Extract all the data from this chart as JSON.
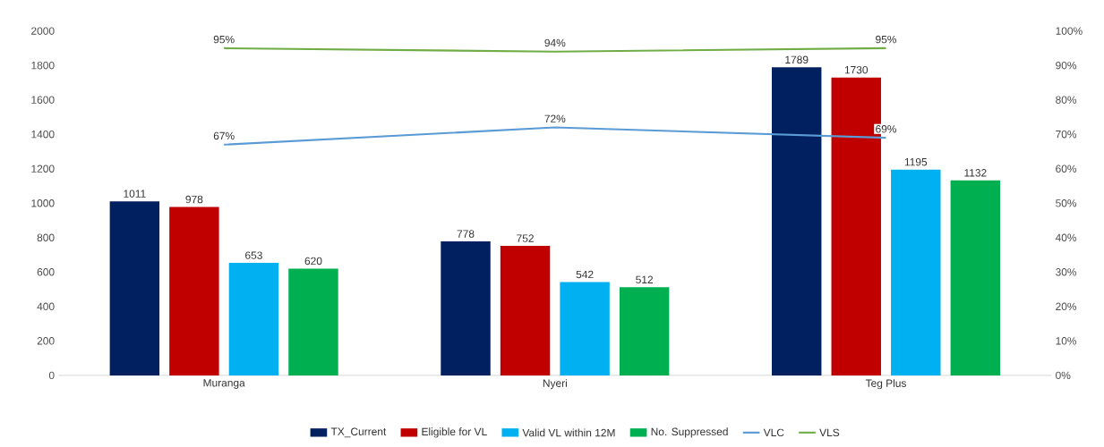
{
  "chart_data": {
    "type": "bar",
    "categories": [
      "Muranga",
      "Nyeri",
      "Teg Plus"
    ],
    "series": [
      {
        "name": "TX_Current",
        "color": "#002060",
        "values": [
          1011,
          778,
          1789
        ],
        "value_labels": [
          "1011",
          "778",
          "1789"
        ]
      },
      {
        "name": "Eligible for VL",
        "color": "#c00000",
        "values": [
          978,
          752,
          1730
        ],
        "value_labels": [
          "978",
          "752",
          "1730"
        ]
      },
      {
        "name": "Valid VL within 12M",
        "color": "#00b0f0",
        "values": [
          653,
          542,
          1195
        ],
        "value_labels": [
          "653",
          "542",
          "1195"
        ]
      },
      {
        "name": "No. Suppressed",
        "color": "#00b050",
        "values": [
          620,
          512,
          1132
        ],
        "value_labels": [
          "620",
          "512",
          "1132"
        ]
      },
      {
        "name": "VLC",
        "type": "line",
        "axis": "y2",
        "color": "#5b9bd5",
        "values": [
          67,
          72,
          69
        ],
        "value_labels": [
          "67%",
          "72%",
          "69%"
        ]
      },
      {
        "name": "VLS",
        "type": "line",
        "axis": "y2",
        "color": "#70ad47",
        "values": [
          95,
          94,
          95
        ],
        "value_labels": [
          "95%",
          "94%",
          "95%"
        ]
      }
    ],
    "ylim": [
      0,
      2000
    ],
    "yticks": [
      0,
      200,
      400,
      600,
      800,
      1000,
      1200,
      1400,
      1600,
      1800,
      2000
    ],
    "y2lim": [
      0,
      100
    ],
    "y2ticks": [
      {
        "value": 0,
        "label": "0%"
      },
      {
        "value": 10,
        "label": "10%"
      },
      {
        "value": 20,
        "label": "20%"
      },
      {
        "value": 30,
        "label": "30%"
      },
      {
        "value": 40,
        "label": "40%"
      },
      {
        "value": 50,
        "label": "50%"
      },
      {
        "value": 60,
        "label": "60%"
      },
      {
        "value": 70,
        "label": "70%"
      },
      {
        "value": 80,
        "label": "80%"
      },
      {
        "value": 90,
        "label": "90%"
      },
      {
        "value": 100,
        "label": "100%"
      }
    ],
    "legend": "bottom",
    "grid": false
  }
}
